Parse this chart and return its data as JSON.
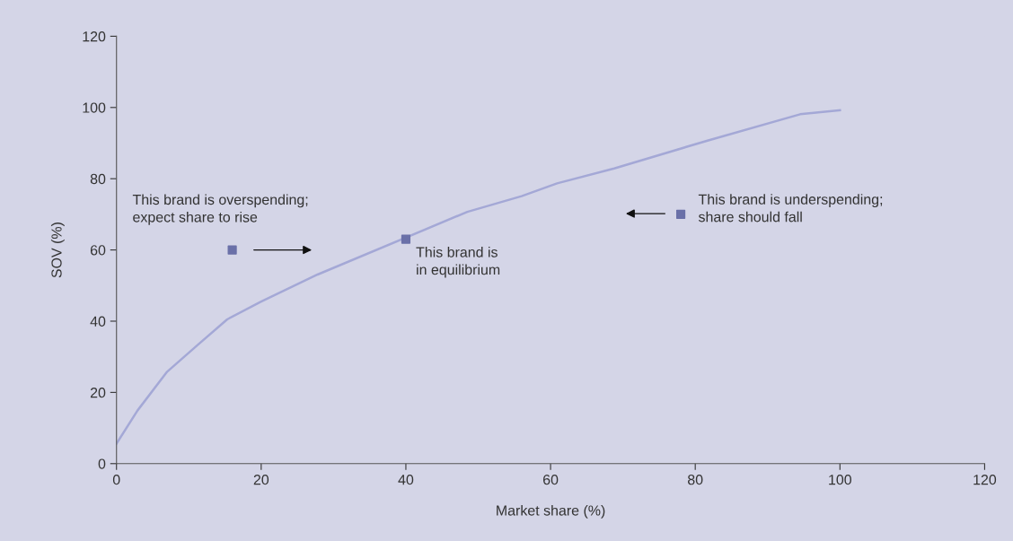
{
  "chart_data": {
    "type": "line",
    "xlabel": "Market share (%)",
    "ylabel": "SOV (%)",
    "xlim": [
      0,
      120
    ],
    "ylim": [
      0,
      120
    ],
    "xticks": [
      0,
      20,
      40,
      60,
      80,
      100,
      120
    ],
    "yticks": [
      0,
      20,
      40,
      60,
      80,
      100,
      120
    ],
    "grid": false,
    "legend": false,
    "series": [
      {
        "color": "#a4a8d6",
        "marker": "none",
        "line_style": "solid",
        "x": [
          0,
          2.9,
          7,
          11.2,
          15.3,
          20,
          27.8,
          48.5,
          56,
          60.9,
          68.8,
          81.7,
          94.5,
          100
        ],
        "values": [
          5.6,
          14.9,
          25.8,
          33.3,
          40.5,
          45.5,
          53.1,
          70.7,
          75.1,
          78.7,
          82.9,
          90.7,
          98.1,
          99.2
        ]
      },
      {
        "type": "scatter",
        "color": "#6a70a8",
        "marker": "square",
        "x": [
          16,
          40,
          78
        ],
        "values": [
          60,
          63,
          70
        ]
      }
    ],
    "annotations": [
      {
        "text": "This brand is overspending;\nexpect share to rise",
        "x": 16,
        "y": 60
      },
      {
        "text": "This brand is\nin equilibrium",
        "x": 40,
        "y": 63
      },
      {
        "text": "This brand is underspending;\nshare should fall",
        "x": 78,
        "y": 70
      }
    ]
  }
}
